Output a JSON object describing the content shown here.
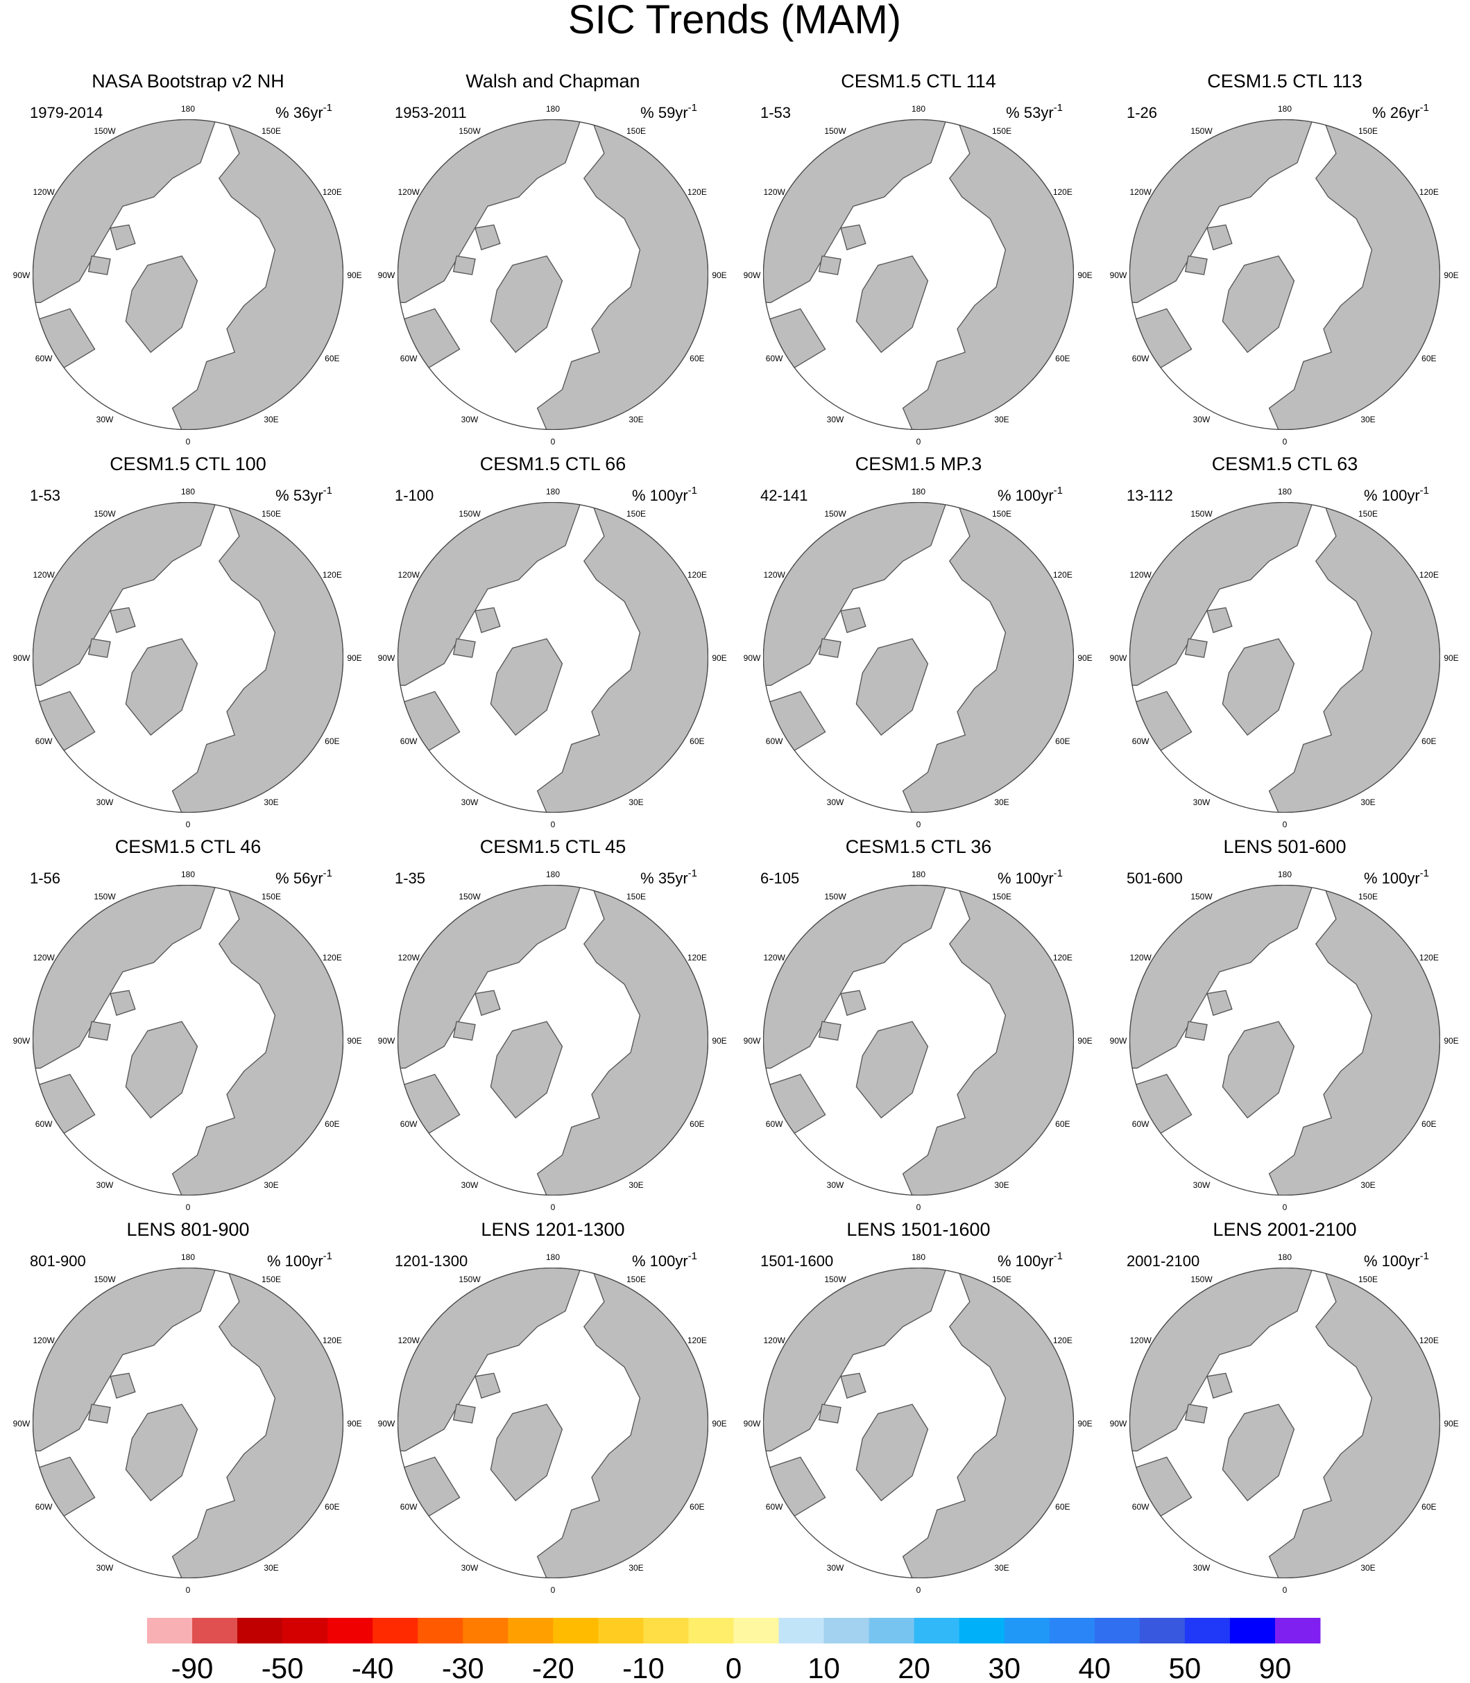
{
  "title": "SIC Trends (MAM)",
  "longitude_labels": [
    "0",
    "30E",
    "60E",
    "90E",
    "120E",
    "150E",
    "180",
    "150W",
    "120W",
    "90W",
    "60W",
    "30W"
  ],
  "panels": [
    {
      "title": "NASA Bootstrap v2 NH",
      "period": "1979-2014",
      "units": "% 36yr",
      "units_exponent": "-1"
    },
    {
      "title": "Walsh and Chapman",
      "period": "1953-2011",
      "units": "% 59yr",
      "units_exponent": "-1"
    },
    {
      "title": "CESM1.5 CTL 114",
      "period": "1-53",
      "units": "% 53yr",
      "units_exponent": "-1"
    },
    {
      "title": "CESM1.5 CTL 113",
      "period": "1-26",
      "units": "% 26yr",
      "units_exponent": "-1"
    },
    {
      "title": "CESM1.5 CTL 100",
      "period": "1-53",
      "units": "% 53yr",
      "units_exponent": "-1"
    },
    {
      "title": "CESM1.5 CTL 66",
      "period": "1-100",
      "units": "% 100yr",
      "units_exponent": "-1"
    },
    {
      "title": "CESM1.5 MP.3",
      "period": "42-141",
      "units": "% 100yr",
      "units_exponent": "-1"
    },
    {
      "title": "CESM1.5 CTL 63",
      "period": "13-112",
      "units": "% 100yr",
      "units_exponent": "-1"
    },
    {
      "title": "CESM1.5 CTL 46",
      "period": "1-56",
      "units": "% 56yr",
      "units_exponent": "-1"
    },
    {
      "title": "CESM1.5 CTL 45",
      "period": "1-35",
      "units": "% 35yr",
      "units_exponent": "-1"
    },
    {
      "title": "CESM1.5 CTL 36",
      "period": "6-105",
      "units": "% 100yr",
      "units_exponent": "-1"
    },
    {
      "title": "LENS 501-600",
      "period": "501-600",
      "units": "% 100yr",
      "units_exponent": "-1"
    },
    {
      "title": "LENS 801-900",
      "period": "801-900",
      "units": "% 100yr",
      "units_exponent": "-1"
    },
    {
      "title": "LENS 1201-1300",
      "period": "1201-1300",
      "units": "% 100yr",
      "units_exponent": "-1"
    },
    {
      "title": "LENS 1501-1600",
      "period": "1501-1600",
      "units": "% 100yr",
      "units_exponent": "-1"
    },
    {
      "title": "LENS 2001-2100",
      "period": "2001-2100",
      "units": "% 100yr",
      "units_exponent": "-1"
    }
  ],
  "colorbar": {
    "colors": [
      "#f9b0b4",
      "#e05050",
      "#c00000",
      "#d40000",
      "#f00000",
      "#ff2a00",
      "#ff5a00",
      "#ff7c00",
      "#ffa000",
      "#ffbb00",
      "#ffcc22",
      "#ffdd44",
      "#ffee6a",
      "#fff8a0",
      "#c2e4f8",
      "#a2d2f0",
      "#78c4f0",
      "#30b8f8",
      "#00b0f8",
      "#2098f8",
      "#2a86f6",
      "#3070f0",
      "#3858e0",
      "#2038f8",
      "#0000ff",
      "#8020f0"
    ],
    "labels": [
      -90,
      -50,
      -40,
      -30,
      -20,
      -10,
      0,
      10,
      20,
      30,
      40,
      50,
      90
    ]
  }
}
